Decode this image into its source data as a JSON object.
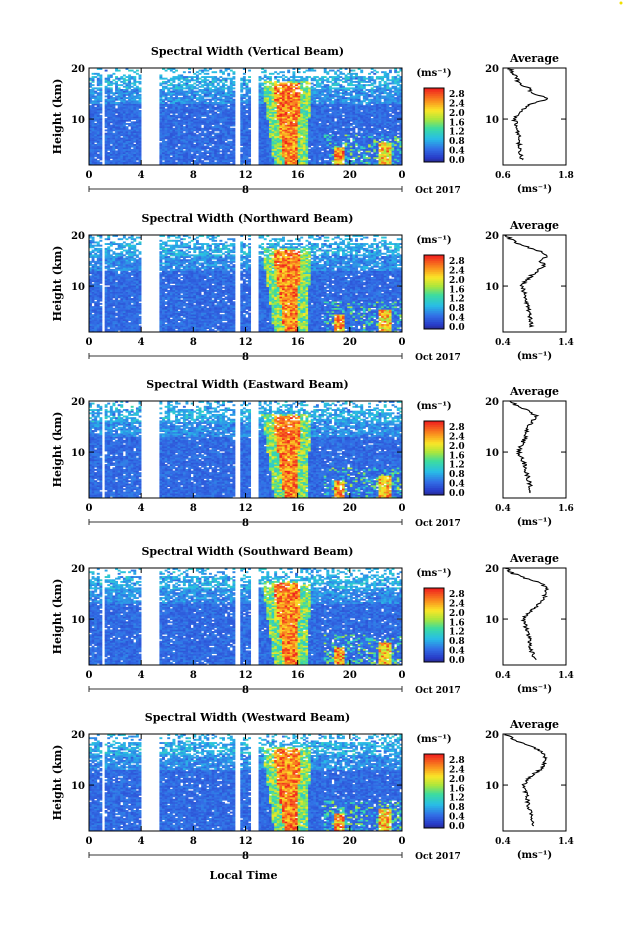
{
  "figure": {
    "xlabel": "Local Time",
    "date_label": "Oct 2017",
    "day_label": "8",
    "ylabel": "Height (km)",
    "avg_title": "Average",
    "avg_xlabel": "(ms⁻¹)",
    "colorbar_unit": "(ms⁻¹)"
  },
  "chart_data": [
    {
      "type": "heatmap",
      "title": "Spectral Width (Vertical Beam)",
      "x_ticks": [
        "0",
        "4",
        "8",
        "12",
        "16",
        "20",
        "0"
      ],
      "xlim": [
        0,
        24
      ],
      "y_ticks": [
        "20",
        "10"
      ],
      "ylim": [
        1,
        20
      ],
      "colorbar_ticks": [
        "2.8",
        "2.4",
        "2.0",
        "1.6",
        "1.2",
        "0.8",
        "0.4",
        "0.0"
      ],
      "clim": [
        0,
        2.8
      ],
      "data_gaps_hours": [
        [
          1.0,
          1.2
        ],
        [
          4.0,
          5.3
        ],
        [
          11.2,
          11.6
        ],
        [
          12.5,
          13.0
        ]
      ],
      "average_profile": {
        "xlim": [
          0.6,
          1.8
        ],
        "x_ticks": [
          "0.6",
          "1.8"
        ],
        "height_km": [
          2,
          4,
          6,
          8,
          10,
          11,
          12,
          13,
          14,
          15,
          16,
          17,
          18,
          19,
          20
        ],
        "value": [
          0.95,
          0.92,
          0.9,
          0.88,
          0.82,
          0.9,
          1.0,
          1.15,
          1.5,
          1.15,
          1.1,
          0.9,
          0.85,
          0.8,
          0.72
        ]
      }
    },
    {
      "type": "heatmap",
      "title": "Spectral Width (Northward Beam)",
      "x_ticks": [
        "0",
        "4",
        "8",
        "12",
        "16",
        "20",
        "0"
      ],
      "xlim": [
        0,
        24
      ],
      "y_ticks": [
        "20",
        "10"
      ],
      "ylim": [
        1,
        20
      ],
      "colorbar_ticks": [
        "2.8",
        "2.4",
        "2.0",
        "1.6",
        "1.2",
        "0.8",
        "0.4",
        "0.0"
      ],
      "clim": [
        0,
        2.8
      ],
      "data_gaps_hours": [
        [
          1.0,
          1.2
        ],
        [
          4.0,
          5.3
        ],
        [
          11.2,
          11.6
        ],
        [
          12.5,
          13.0
        ]
      ],
      "average_profile": {
        "xlim": [
          0.4,
          1.4
        ],
        "x_ticks": [
          "0.4",
          "1.4"
        ],
        "height_km": [
          2,
          4,
          6,
          8,
          10,
          11,
          12,
          13,
          14,
          15,
          16,
          17,
          18,
          19,
          20
        ],
        "value": [
          0.85,
          0.82,
          0.8,
          0.75,
          0.7,
          0.75,
          0.85,
          0.95,
          1.05,
          1.0,
          1.1,
          0.95,
          0.7,
          0.55,
          0.45
        ]
      }
    },
    {
      "type": "heatmap",
      "title": "Spectral Width (Eastward Beam)",
      "x_ticks": [
        "0",
        "4",
        "8",
        "12",
        "16",
        "20",
        "0"
      ],
      "xlim": [
        0,
        24
      ],
      "y_ticks": [
        "20",
        "10"
      ],
      "ylim": [
        1,
        20
      ],
      "colorbar_ticks": [
        "2.8",
        "2.4",
        "2.0",
        "1.6",
        "1.2",
        "0.8",
        "0.4",
        "0.0"
      ],
      "clim": [
        0,
        2.8
      ],
      "data_gaps_hours": [
        [
          1.0,
          1.2
        ],
        [
          4.0,
          5.3
        ],
        [
          11.2,
          11.6
        ],
        [
          12.5,
          13.0
        ]
      ],
      "average_profile": {
        "xlim": [
          0.4,
          1.6
        ],
        "x_ticks": [
          "0.4",
          "1.6"
        ],
        "height_km": [
          2,
          4,
          6,
          8,
          10,
          11,
          12,
          13,
          14,
          15,
          16,
          17,
          18,
          19,
          20
        ],
        "value": [
          0.95,
          0.9,
          0.85,
          0.8,
          0.7,
          0.72,
          0.78,
          0.82,
          0.85,
          0.88,
          0.95,
          1.05,
          0.9,
          0.7,
          0.5
        ]
      }
    },
    {
      "type": "heatmap",
      "title": "Spectral Width (Southward Beam)",
      "x_ticks": [
        "0",
        "4",
        "8",
        "12",
        "16",
        "20",
        "0"
      ],
      "xlim": [
        0,
        24
      ],
      "y_ticks": [
        "20",
        "10"
      ],
      "ylim": [
        1,
        20
      ],
      "colorbar_ticks": [
        "2.8",
        "2.4",
        "2.0",
        "1.6",
        "1.2",
        "0.8",
        "0.4",
        "0.0"
      ],
      "clim": [
        0,
        2.8
      ],
      "data_gaps_hours": [
        [
          1.0,
          1.2
        ],
        [
          4.0,
          5.3
        ],
        [
          11.2,
          11.6
        ],
        [
          12.5,
          13.0
        ]
      ],
      "average_profile": {
        "xlim": [
          0.4,
          1.4
        ],
        "x_ticks": [
          "0.4",
          "1.4"
        ],
        "height_km": [
          2,
          4,
          6,
          8,
          10,
          11,
          12,
          13,
          14,
          15,
          16,
          17,
          18,
          19,
          20
        ],
        "value": [
          0.9,
          0.85,
          0.82,
          0.78,
          0.72,
          0.78,
          0.88,
          0.98,
          1.05,
          1.08,
          1.12,
          1.0,
          0.75,
          0.55,
          0.45
        ]
      }
    },
    {
      "type": "heatmap",
      "title": "Spectral Width (Westward Beam)",
      "x_ticks": [
        "0",
        "4",
        "8",
        "12",
        "16",
        "20",
        "0"
      ],
      "xlim": [
        0,
        24
      ],
      "y_ticks": [
        "20",
        "10"
      ],
      "ylim": [
        1,
        20
      ],
      "colorbar_ticks": [
        "2.8",
        "2.4",
        "2.0",
        "1.6",
        "1.2",
        "0.8",
        "0.4",
        "0.0"
      ],
      "clim": [
        0,
        2.8
      ],
      "data_gaps_hours": [
        [
          1.0,
          1.2
        ],
        [
          4.0,
          5.3
        ],
        [
          11.2,
          11.6
        ],
        [
          12.5,
          13.0
        ]
      ],
      "average_profile": {
        "xlim": [
          0.4,
          1.4
        ],
        "x_ticks": [
          "0.4",
          "1.4"
        ],
        "height_km": [
          2,
          4,
          6,
          8,
          10,
          11,
          12,
          13,
          14,
          15,
          16,
          17,
          18,
          19,
          20
        ],
        "value": [
          0.88,
          0.85,
          0.8,
          0.78,
          0.72,
          0.78,
          0.88,
          0.98,
          1.05,
          1.1,
          1.05,
          0.95,
          0.75,
          0.55,
          0.45
        ]
      }
    }
  ]
}
